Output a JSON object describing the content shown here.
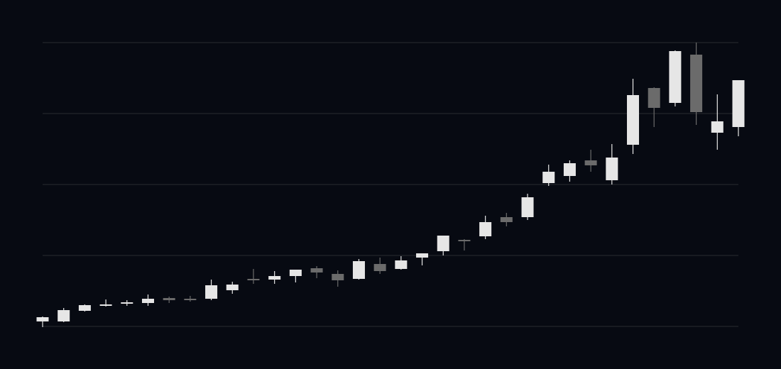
{
  "chart_data": {
    "type": "candlestick",
    "title": "",
    "xlabel": "",
    "ylabel": "",
    "ylim": [
      0,
      4
    ],
    "gridlines_y": [
      0,
      1,
      2,
      3,
      4
    ],
    "grid": true,
    "colors": {
      "background": "#070a12",
      "grid": "#2a2c30",
      "up": "#e6e6e6",
      "down": "#6b6b6b"
    },
    "candles": [
      {
        "o": 0.07,
        "h": 0.14,
        "l": -0.01,
        "c": 0.13
      },
      {
        "o": 0.07,
        "h": 0.26,
        "l": 0.06,
        "c": 0.23
      },
      {
        "o": 0.22,
        "h": 0.31,
        "l": 0.21,
        "c": 0.3
      },
      {
        "o": 0.29,
        "h": 0.38,
        "l": 0.28,
        "c": 0.31
      },
      {
        "o": 0.32,
        "h": 0.37,
        "l": 0.29,
        "c": 0.34
      },
      {
        "o": 0.33,
        "h": 0.45,
        "l": 0.29,
        "c": 0.39
      },
      {
        "o": 0.4,
        "h": 0.42,
        "l": 0.33,
        "c": 0.37
      },
      {
        "o": 0.39,
        "h": 0.43,
        "l": 0.35,
        "c": 0.37
      },
      {
        "o": 0.39,
        "h": 0.66,
        "l": 0.37,
        "c": 0.58
      },
      {
        "o": 0.51,
        "h": 0.63,
        "l": 0.46,
        "c": 0.59
      },
      {
        "o": 0.67,
        "h": 0.81,
        "l": 0.6,
        "c": 0.65
      },
      {
        "o": 0.66,
        "h": 0.78,
        "l": 0.6,
        "c": 0.71
      },
      {
        "o": 0.71,
        "h": 0.8,
        "l": 0.62,
        "c": 0.8
      },
      {
        "o": 0.82,
        "h": 0.85,
        "l": 0.68,
        "c": 0.76
      },
      {
        "o": 0.74,
        "h": 0.79,
        "l": 0.56,
        "c": 0.65
      },
      {
        "o": 0.67,
        "h": 0.95,
        "l": 0.66,
        "c": 0.92
      },
      {
        "o": 0.88,
        "h": 0.97,
        "l": 0.74,
        "c": 0.78
      },
      {
        "o": 0.81,
        "h": 0.99,
        "l": 0.8,
        "c": 0.93
      },
      {
        "o": 0.97,
        "h": 1.03,
        "l": 0.86,
        "c": 1.03
      },
      {
        "o": 1.06,
        "h": 1.28,
        "l": 1.0,
        "c": 1.28
      },
      {
        "o": 1.22,
        "h": 1.23,
        "l": 1.07,
        "c": 1.2
      },
      {
        "o": 1.27,
        "h": 1.56,
        "l": 1.23,
        "c": 1.47
      },
      {
        "o": 1.54,
        "h": 1.6,
        "l": 1.41,
        "c": 1.47
      },
      {
        "o": 1.54,
        "h": 1.87,
        "l": 1.5,
        "c": 1.82
      },
      {
        "o": 2.02,
        "h": 2.28,
        "l": 1.98,
        "c": 2.18
      },
      {
        "o": 2.12,
        "h": 2.34,
        "l": 2.04,
        "c": 2.3
      },
      {
        "o": 2.34,
        "h": 2.49,
        "l": 2.18,
        "c": 2.27
      },
      {
        "o": 2.06,
        "h": 2.57,
        "l": 2.0,
        "c": 2.38
      },
      {
        "o": 2.56,
        "h": 3.49,
        "l": 2.43,
        "c": 3.26
      },
      {
        "o": 3.36,
        "h": 3.37,
        "l": 2.81,
        "c": 3.08
      },
      {
        "o": 3.15,
        "h": 3.89,
        "l": 3.1,
        "c": 3.88
      },
      {
        "o": 3.83,
        "h": 4.0,
        "l": 2.84,
        "c": 3.02
      },
      {
        "o": 2.73,
        "h": 3.27,
        "l": 2.49,
        "c": 2.89
      },
      {
        "o": 2.81,
        "h": 3.47,
        "l": 2.68,
        "c": 3.47
      }
    ]
  }
}
